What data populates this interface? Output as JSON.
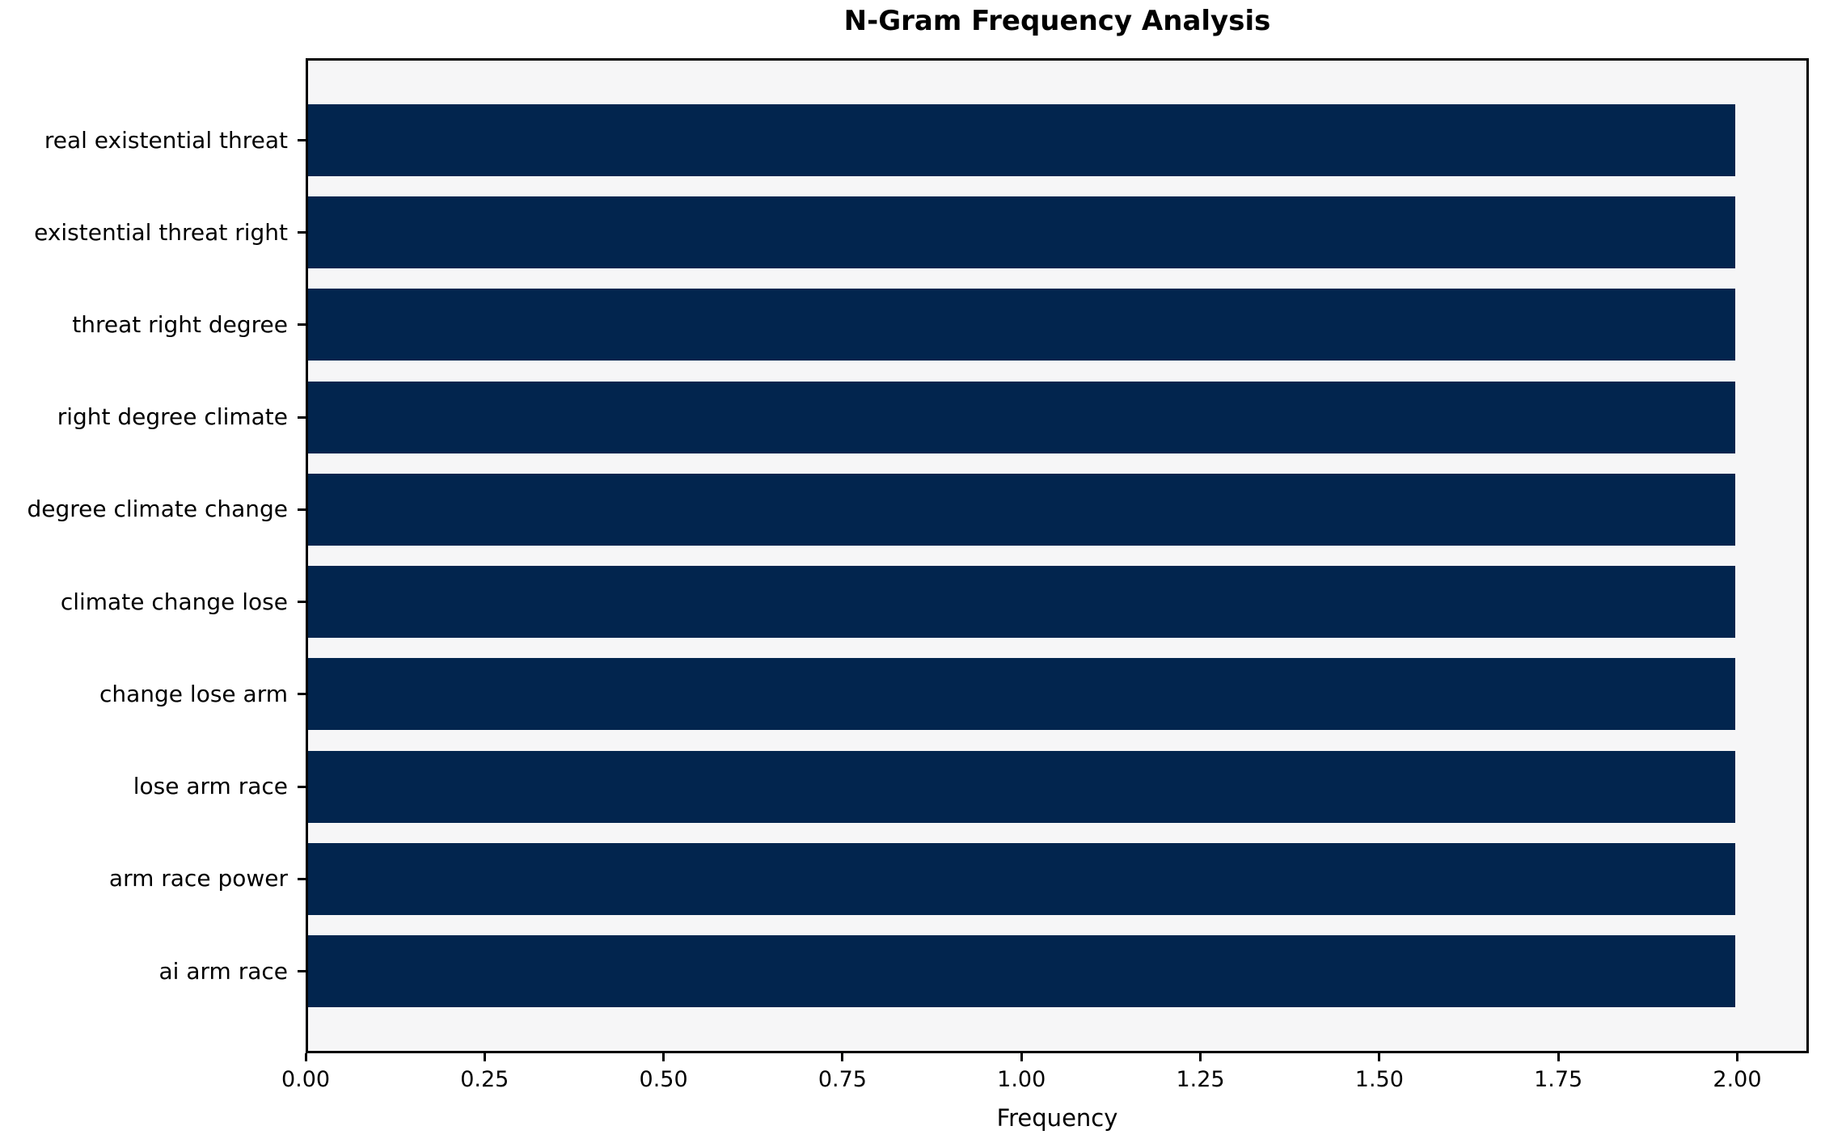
{
  "chart_data": {
    "type": "bar",
    "orientation": "horizontal",
    "title": "N-Gram Frequency Analysis",
    "xlabel": "Frequency",
    "ylabel": "",
    "categories": [
      "real existential threat",
      "existential threat right",
      "threat right degree",
      "right degree climate",
      "degree climate change",
      "climate change lose",
      "change lose arm",
      "lose arm race",
      "arm race power",
      "ai arm race"
    ],
    "values": [
      2,
      2,
      2,
      2,
      2,
      2,
      2,
      2,
      2,
      2
    ],
    "xlim": [
      0,
      2.1
    ],
    "xticks": [
      0,
      0.25,
      0.5,
      0.75,
      1,
      1.25,
      1.5,
      1.75,
      2
    ],
    "xtick_labels": [
      "0.00",
      "0.25",
      "0.50",
      "0.75",
      "1.00",
      "1.25",
      "1.50",
      "1.75",
      "2.00"
    ],
    "grid": false,
    "legend": null,
    "colors": {
      "bar": "#02254e",
      "plot_bg": "#f6f6f7",
      "figure_bg": "#ffffff",
      "spine": "#000000",
      "text": "#000000"
    }
  }
}
